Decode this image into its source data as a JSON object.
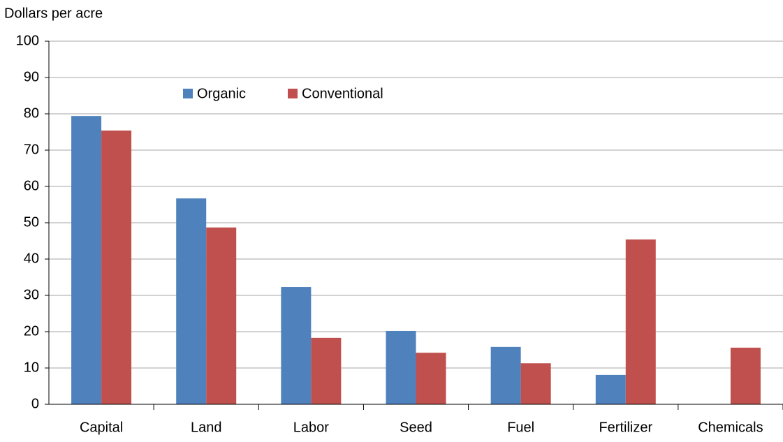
{
  "chart_data": {
    "type": "bar",
    "y_label": "Dollars per acre",
    "categories": [
      "Capital",
      "Land",
      "Labor",
      "Seed",
      "Fuel",
      "Fertilizer",
      "Chemicals"
    ],
    "series": [
      {
        "name": "Organic",
        "color": "#4f81bd",
        "values": [
          79.4,
          56.7,
          32.3,
          20.2,
          15.8,
          8.1,
          0
        ]
      },
      {
        "name": "Conventional",
        "color": "#c0504d",
        "values": [
          75.4,
          48.7,
          18.3,
          14.2,
          11.3,
          45.4,
          15.6
        ]
      }
    ],
    "ylim": [
      0,
      100
    ],
    "yticks": [
      0,
      10,
      20,
      30,
      40,
      50,
      60,
      70,
      80,
      90,
      100
    ],
    "grid": true,
    "legend": "top-left"
  }
}
